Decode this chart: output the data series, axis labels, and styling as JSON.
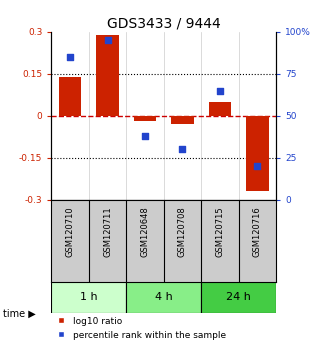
{
  "title": "GDS3433 / 9444",
  "categories": [
    "GSM120710",
    "GSM120711",
    "GSM120648",
    "GSM120708",
    "GSM120715",
    "GSM120716"
  ],
  "bar_values": [
    0.14,
    0.29,
    -0.02,
    -0.03,
    0.05,
    -0.27
  ],
  "dot_values": [
    85,
    95,
    38,
    30,
    65,
    20
  ],
  "bar_color": "#cc2200",
  "dot_color": "#2244cc",
  "ylim_left": [
    -0.3,
    0.3
  ],
  "ylim_right": [
    0,
    100
  ],
  "yticks_left": [
    -0.3,
    -0.15,
    0,
    0.15,
    0.3
  ],
  "yticks_right": [
    0,
    25,
    50,
    75,
    100
  ],
  "ytick_labels_left": [
    "-0.3",
    "-0.15",
    "0",
    "0.15",
    "0.3"
  ],
  "ytick_labels_right": [
    "0",
    "25",
    "50",
    "75",
    "100%"
  ],
  "hlines": [
    0.15,
    -0.15
  ],
  "hline_zero_color": "#cc0000",
  "hline_dotted_color": "#000000",
  "time_groups": [
    {
      "label": "1 h",
      "spans": [
        0,
        1
      ],
      "color": "#ccffcc"
    },
    {
      "label": "4 h",
      "spans": [
        2,
        3
      ],
      "color": "#88ee88"
    },
    {
      "label": "24 h",
      "spans": [
        4,
        5
      ],
      "color": "#44cc44"
    }
  ],
  "legend_bar_label": "log10 ratio",
  "legend_dot_label": "percentile rank within the sample",
  "bar_width": 0.6,
  "background_color": "#ffffff",
  "plot_bg_color": "#ffffff",
  "label_area_color": "#cccccc",
  "title_fontsize": 10,
  "axis_fontsize": 7
}
